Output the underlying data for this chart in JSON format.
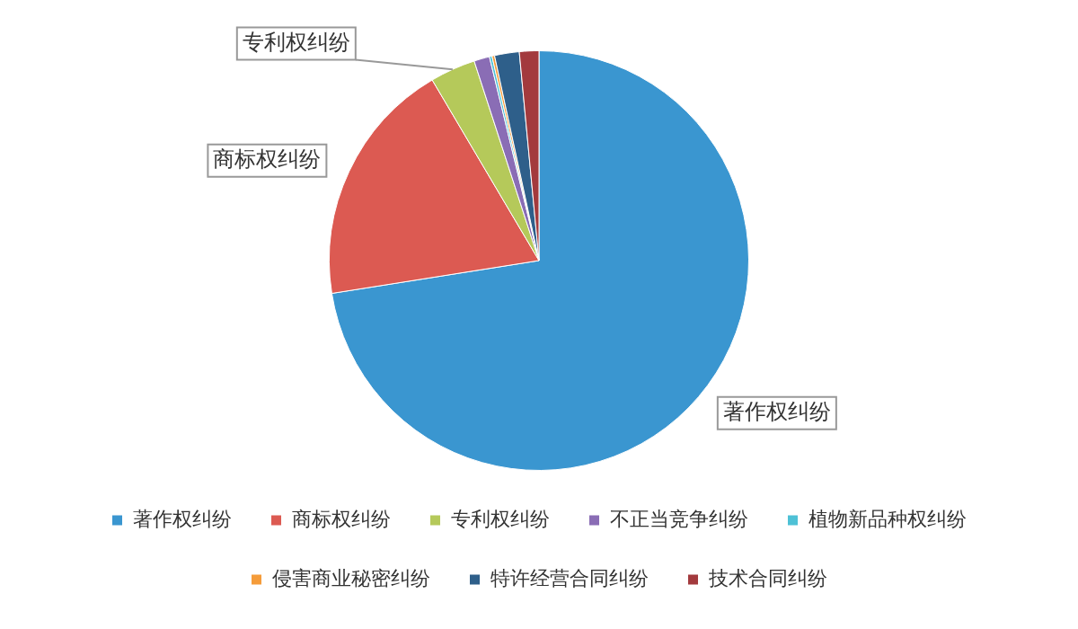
{
  "chart_data": {
    "type": "pie",
    "categories": [
      "著作权纠纷",
      "商标权纠纷",
      "专利权纠纷",
      "不正当竞争纠纷",
      "植物新品种权纠纷",
      "侵害商业秘密纠纷",
      "特许经营合同纠纷",
      "技术合同纠纷"
    ],
    "values": [
      72.5,
      19,
      3.5,
      1.2,
      0.2,
      0.2,
      1.9,
      1.5
    ],
    "colors": [
      "#3a96d0",
      "#dc5a52",
      "#b5c95a",
      "#8a6db5",
      "#4ec1d6",
      "#f59c3a",
      "#2e5f8a",
      "#a33a3d"
    ],
    "value_labels": [
      "著作权纠纷",
      "商标权纠纷",
      "专利权纠纷",
      null,
      null,
      null,
      null,
      null
    ],
    "legend": "bottom"
  }
}
